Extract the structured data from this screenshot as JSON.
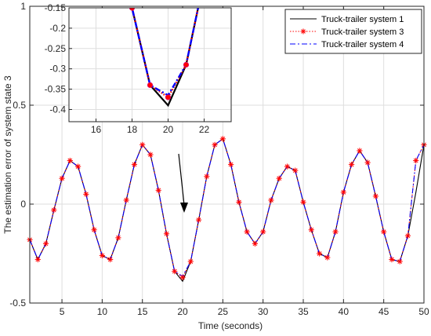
{
  "chart_data": {
    "type": "line",
    "xlabel": "Time (seconds)",
    "ylabel": "The estimation error of system state 3",
    "xlim": [
      1,
      50
    ],
    "ylim": [
      -0.5,
      1
    ],
    "xticks": [
      5,
      10,
      15,
      20,
      25,
      30,
      35,
      40,
      45,
      50
    ],
    "yticks": [
      -0.5,
      0,
      0.5,
      1
    ],
    "ytick_labels": [
      "-0.5",
      "0",
      "0.5",
      "1"
    ],
    "grid": true,
    "legend_position": "top-right",
    "x": [
      1,
      2,
      3,
      4,
      5,
      6,
      7,
      8,
      9,
      10,
      11,
      12,
      13,
      14,
      15,
      16,
      17,
      18,
      19,
      20,
      21,
      22,
      23,
      24,
      25,
      26,
      27,
      28,
      29,
      30,
      31,
      32,
      33,
      34,
      35,
      36,
      37,
      38,
      39,
      40,
      41,
      42,
      43,
      44,
      45,
      46,
      47,
      48,
      49,
      50
    ],
    "series": [
      {
        "name": "Truck-trailer system 1",
        "color": "#000000",
        "dash": "solid",
        "marker": "none",
        "values": [
          -0.18,
          -0.28,
          -0.2,
          -0.03,
          0.13,
          0.22,
          0.19,
          0.05,
          -0.13,
          -0.26,
          -0.28,
          -0.17,
          0.02,
          0.2,
          0.3,
          0.25,
          0.07,
          -0.15,
          -0.34,
          -0.39,
          -0.29,
          -0.08,
          0.14,
          0.3,
          0.33,
          0.2,
          0.01,
          -0.14,
          -0.2,
          -0.14,
          0.02,
          0.13,
          0.19,
          0.17,
          0.01,
          -0.13,
          -0.25,
          -0.27,
          -0.14,
          0.06,
          0.2,
          0.27,
          0.21,
          0.04,
          -0.14,
          -0.28,
          -0.29,
          -0.16,
          0.06,
          0.3
        ]
      },
      {
        "name": "Truck-trailer system 3",
        "color": "#ff0000",
        "dash": "dotted",
        "marker": "asterisk",
        "values": [
          -0.18,
          -0.28,
          -0.2,
          -0.03,
          0.13,
          0.22,
          0.19,
          0.05,
          -0.13,
          -0.26,
          -0.28,
          -0.17,
          0.02,
          0.2,
          0.3,
          0.25,
          0.07,
          -0.15,
          -0.34,
          -0.37,
          -0.29,
          -0.08,
          0.14,
          0.3,
          0.33,
          0.2,
          0.01,
          -0.14,
          -0.2,
          -0.14,
          0.02,
          0.13,
          0.19,
          0.17,
          0.01,
          -0.13,
          -0.25,
          -0.27,
          -0.14,
          0.06,
          0.2,
          0.27,
          0.21,
          0.04,
          -0.14,
          -0.28,
          -0.29,
          -0.16,
          0.22,
          0.3
        ]
      },
      {
        "name": "Truck-trailer system 4",
        "color": "#0000ff",
        "dash": "dashdot",
        "marker": "none",
        "values": [
          -0.18,
          -0.28,
          -0.2,
          -0.03,
          0.13,
          0.22,
          0.19,
          0.05,
          -0.13,
          -0.26,
          -0.28,
          -0.17,
          0.02,
          0.2,
          0.3,
          0.25,
          0.07,
          -0.15,
          -0.34,
          -0.365,
          -0.29,
          -0.08,
          0.14,
          0.3,
          0.33,
          0.2,
          0.01,
          -0.14,
          -0.2,
          -0.14,
          0.02,
          0.13,
          0.19,
          0.17,
          0.01,
          -0.13,
          -0.25,
          -0.27,
          -0.14,
          0.06,
          0.2,
          0.27,
          0.21,
          0.04,
          -0.14,
          -0.28,
          -0.29,
          -0.16,
          0.22,
          0.3
        ]
      }
    ],
    "annotation": "arrow",
    "inset": {
      "xlim": [
        14.5,
        23.5
      ],
      "ylim": [
        -0.43,
        -0.15
      ],
      "xticks": [
        16,
        18,
        20,
        22
      ],
      "yticks": [
        -0.4,
        -0.35,
        -0.3,
        -0.25,
        -0.2,
        -0.15
      ],
      "ytick_labels": [
        "-0.4",
        "-0.35",
        "-0.3",
        "-0.25",
        "-0.2",
        "-0.15"
      ],
      "grid": true
    }
  }
}
